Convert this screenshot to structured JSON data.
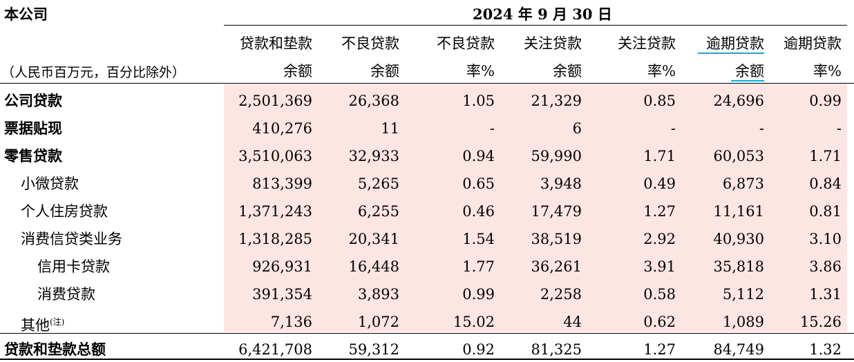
{
  "header": {
    "company": "本公司",
    "date": "2024 年 9 月 30 日",
    "unit_note": "（人民币百万元，百分比除外）",
    "columns": [
      {
        "line1": "贷款和垫款",
        "line2": "余额"
      },
      {
        "line1": "不良贷款",
        "line2": "余额"
      },
      {
        "line1": "不良贷款",
        "line2": "率%"
      },
      {
        "line1": "关注贷款",
        "line2": "余额"
      },
      {
        "line1": "关注贷款",
        "line2": "率%"
      },
      {
        "line1": "逾期贷款",
        "line2": "余额"
      },
      {
        "line1": "逾期贷款",
        "line2": "率%"
      }
    ]
  },
  "rows": [
    {
      "label": "公司贷款",
      "values": [
        "2,501,369",
        "26,368",
        "1.05",
        "21,329",
        "0.85",
        "24,696",
        "0.99"
      ]
    },
    {
      "label": "票据贴现",
      "values": [
        "410,276",
        "11",
        "-",
        "6",
        "-",
        "-",
        "-"
      ]
    },
    {
      "label": "零售贷款",
      "values": [
        "3,510,063",
        "32,933",
        "0.94",
        "59,990",
        "1.71",
        "60,053",
        "1.71"
      ]
    },
    {
      "label": "小微贷款",
      "values": [
        "813,399",
        "5,265",
        "0.65",
        "3,948",
        "0.49",
        "6,873",
        "0.84"
      ]
    },
    {
      "label": "个人住房贷款",
      "values": [
        "1,371,243",
        "6,255",
        "0.46",
        "17,479",
        "1.27",
        "11,161",
        "0.81"
      ]
    },
    {
      "label": "消费信贷类业务",
      "values": [
        "1,318,285",
        "20,341",
        "1.54",
        "38,519",
        "2.92",
        "40,930",
        "3.10"
      ]
    },
    {
      "label": "信用卡贷款",
      "values": [
        "926,931",
        "16,448",
        "1.77",
        "36,261",
        "3.91",
        "35,818",
        "3.86"
      ]
    },
    {
      "label": "消费贷款",
      "values": [
        "391,354",
        "3,893",
        "0.99",
        "2,258",
        "0.58",
        "5,112",
        "1.31"
      ]
    },
    {
      "label": "其他",
      "note": "(注)",
      "values": [
        "7,136",
        "1,072",
        "15.02",
        "44",
        "0.62",
        "1,089",
        "15.26"
      ]
    }
  ],
  "total": {
    "label": "贷款和垫款总额",
    "values": [
      "6,421,708",
      "59,312",
      "0.92",
      "81,325",
      "1.27",
      "84,749",
      "1.32"
    ]
  },
  "colors": {
    "shade": "#fde5e3",
    "accent_underline": "#1aa7c9"
  }
}
